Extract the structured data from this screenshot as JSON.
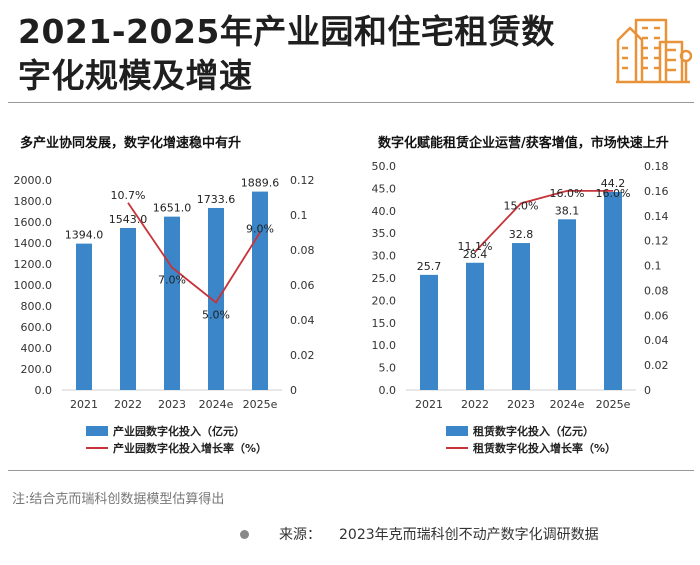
{
  "title_line1": "2021-2025年产业园和住宅租赁数",
  "title_line2": "字化规模及增速",
  "chart_data": [
    {
      "type": "bar+line",
      "title": "多产业协同发展，数字化增速稳中有升",
      "categories": [
        "2021",
        "2022",
        "2023",
        "2024e",
        "2025e"
      ],
      "series": [
        {
          "name": "产业园数字化投入（亿元）",
          "type": "bar",
          "axis": "left",
          "values": [
            1394.0,
            1543.0,
            1651.0,
            1733.6,
            1889.6
          ],
          "labels": [
            "1394.0",
            "1543.0",
            "1651.0",
            "1733.6",
            "1889.6"
          ]
        },
        {
          "name": "产业园数字化投入增长率（%）",
          "type": "line",
          "axis": "right",
          "values": [
            null,
            0.107,
            0.07,
            0.05,
            0.09
          ],
          "labels": [
            "",
            "10.7%",
            "7.0%",
            "5.0%",
            "9.0%"
          ]
        }
      ],
      "left_axis": {
        "min": 0,
        "max": 2000,
        "step": 200,
        "ticks": [
          "0.0",
          "200.0",
          "400.0",
          "600.0",
          "800.0",
          "1000.0",
          "1200.0",
          "1400.0",
          "1600.0",
          "1800.0",
          "2000.0"
        ]
      },
      "right_axis": {
        "min": 0,
        "max": 0.12,
        "step": 0.02,
        "ticks": [
          "0",
          "0.02",
          "0.04",
          "0.06",
          "0.08",
          "0.1",
          "0.12"
        ]
      },
      "grid": false,
      "legend": "bottom",
      "colors": {
        "bar": "#3a86c8",
        "line": "#c8333a"
      }
    },
    {
      "type": "bar+line",
      "title": "数字化赋能租赁企业运营/获客增值，市场快速上升",
      "categories": [
        "2021",
        "2022",
        "2023",
        "2024e",
        "2025e"
      ],
      "series": [
        {
          "name": "租赁数字化投入（亿元）",
          "type": "bar",
          "axis": "left",
          "values": [
            25.7,
            28.4,
            32.8,
            38.1,
            44.2
          ],
          "labels": [
            "25.7",
            "28.4",
            "32.8",
            "38.1",
            "44.2"
          ]
        },
        {
          "name": "租赁数字化投入增长率（%）",
          "type": "line",
          "axis": "right",
          "values": [
            null,
            0.111,
            0.15,
            0.16,
            0.16
          ],
          "labels": [
            "",
            "11.1%",
            "15.0%",
            "16.0%",
            "16.0%"
          ]
        }
      ],
      "left_axis": {
        "min": 0,
        "max": 50,
        "step": 5,
        "ticks": [
          "0.0",
          "5.0",
          "10.0",
          "15.0",
          "20.0",
          "25.0",
          "30.0",
          "35.0",
          "40.0",
          "45.0",
          "50.0"
        ]
      },
      "right_axis": {
        "min": 0,
        "max": 0.18,
        "step": 0.02,
        "ticks": [
          "0",
          "0.02",
          "0.04",
          "0.06",
          "0.08",
          "0.1",
          "0.12",
          "0.14",
          "0.16",
          "0.18"
        ]
      },
      "grid": false,
      "legend": "bottom",
      "colors": {
        "bar": "#3a86c8",
        "line": "#c8333a"
      }
    }
  ],
  "note": "注:结合克而瑞科创数据模型估算得出",
  "source": {
    "label": "来源：",
    "text": "2023年克而瑞科创不动产数字化调研数据"
  },
  "colors": {
    "icon": "#e8923a",
    "rule": "#999999"
  },
  "icons": {
    "title": "buildings-icon"
  }
}
